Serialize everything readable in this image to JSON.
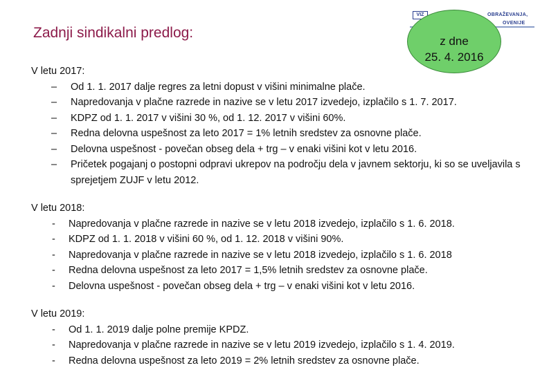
{
  "title": "Zadnji sindikalni predlog:",
  "stamp": {
    "line1": "z dne",
    "line2": "25. 4. 2016"
  },
  "logo": {
    "badge": "VIZ",
    "text1": "OBRAŽEVANJA,",
    "text2": "OVENIJE"
  },
  "sections": [
    {
      "heading": "V letu 2017:",
      "marker": "–",
      "items": [
        "Od 1. 1. 2017 dalje regres za letni dopust v višini minimalne plače.",
        "Napredovanja v plačne razrede in nazive se v letu 2017 izvedejo, izplačilo s 1. 7. 2017.",
        "KDPZ od 1. 1. 2017 v višini 30 %, od 1. 12. 2017 v višini 60%.",
        "Redna delovna uspešnost za leto 2017 = 1% letnih sredstev za osnovne plače.",
        "Delovna uspešnost - povečan obseg dela + trg – v enaki višini kot v letu 2016.",
        "Pričetek pogajanj o postopni odpravi ukrepov na področju dela v javnem sektorju, ki so se uveljavila s sprejetjem ZUJF v letu 2012."
      ]
    },
    {
      "heading": "V letu 2018:",
      "marker": "-",
      "items": [
        "Napredovanja v plačne razrede in nazive se v letu 2018 izvedejo, izplačilo s 1. 6. 2018.",
        "KDPZ od 1. 1. 2018 v višini 60 %, od 1. 12. 2018 v višini 90%.",
        "Napredovanja v plačne razrede in nazive se v letu 2018 izvedejo, izplačilo s 1. 6. 2018",
        "Redna delovna uspešnost za leto 2017 = 1,5% letnih sredstev za osnovne plače.",
        "Delovna uspešnost - povečan obseg dela + trg – v enaki višini kot v letu 2016."
      ]
    },
    {
      "heading": "V letu 2019:",
      "marker": "-",
      "items": [
        "Od 1. 1. 2019 dalje polne premije KPDZ.",
        "Napredovanja v plačne razrede in nazive se v letu 2019 izvedejo, izplačilo s 1. 4. 2019.",
        "Redna delovna uspešnost za leto 2019 = 2% letnih sredstev za osnovne plače."
      ]
    }
  ]
}
